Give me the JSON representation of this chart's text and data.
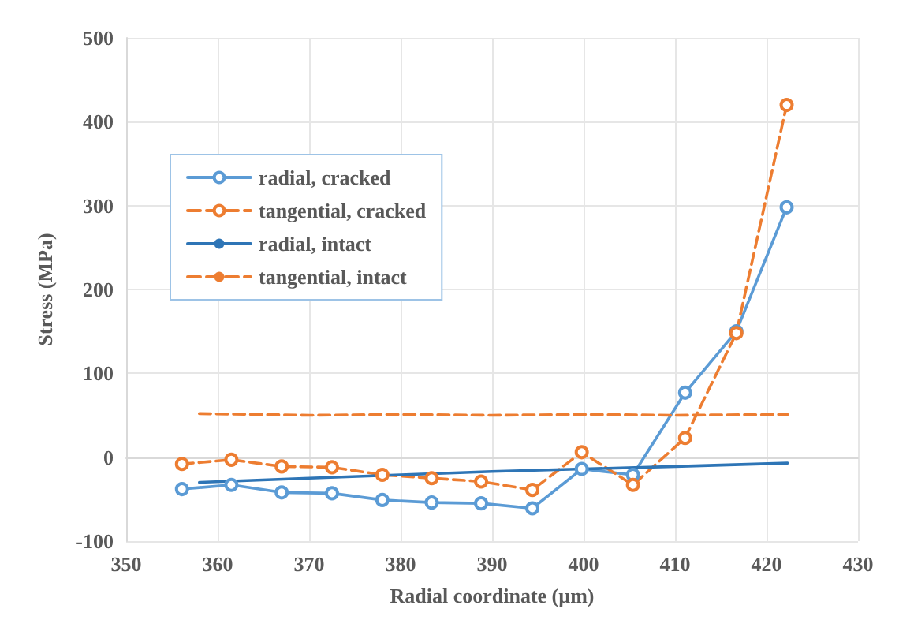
{
  "chart_data": {
    "type": "line",
    "xlabel": "Radial coordinate (µm)",
    "ylabel": "Stress (MPa)",
    "xlim": [
      350,
      430
    ],
    "xticks": [
      350,
      360,
      370,
      380,
      390,
      400,
      410,
      420,
      430
    ],
    "ylim": [
      -100,
      500
    ],
    "yticks": [
      -100,
      0,
      100,
      200,
      300,
      400,
      500
    ],
    "grid": true,
    "legend": "top left",
    "series": [
      {
        "name": "radial, cracked",
        "color": "#5b9bd5",
        "marker": "circle",
        "line_style": "solid",
        "x": [
          356.1,
          361.5,
          367,
          372.5,
          378,
          383.4,
          388.8,
          394.4,
          399.8,
          405.4,
          411.1,
          416.7,
          422.2
        ],
        "values": [
          -38,
          -33,
          -42,
          -43,
          -51,
          -54,
          -55,
          -61,
          -14,
          -21,
          77,
          150,
          298
        ]
      },
      {
        "name": "tangential, cracked",
        "color": "#ed7d31",
        "marker": "circle",
        "line_style": "dashed",
        "x": [
          356.1,
          361.5,
          367,
          372.5,
          378,
          383.4,
          388.8,
          394.4,
          399.8,
          405.4,
          411.1,
          416.7,
          422.2
        ],
        "values": [
          -8,
          -3,
          -11,
          -12,
          -21,
          -25,
          -29,
          -39,
          6,
          -33,
          23,
          148,
          420
        ]
      },
      {
        "name": "radial, intact",
        "color": "#2e75b6",
        "marker": "none",
        "line_style": "solid",
        "x": [
          358,
          370,
          380,
          390,
          400,
          410,
          422.3
        ],
        "values": [
          -30,
          -25,
          -21,
          -17,
          -14,
          -11,
          -7
        ]
      },
      {
        "name": "tangential, intact",
        "color": "#ed7d31",
        "marker": "none",
        "line_style": "dashed",
        "x": [
          358,
          370,
          380,
          390,
          400,
          410,
          422.3
        ],
        "values": [
          52,
          50,
          51,
          50,
          51,
          50,
          51
        ]
      }
    ]
  }
}
